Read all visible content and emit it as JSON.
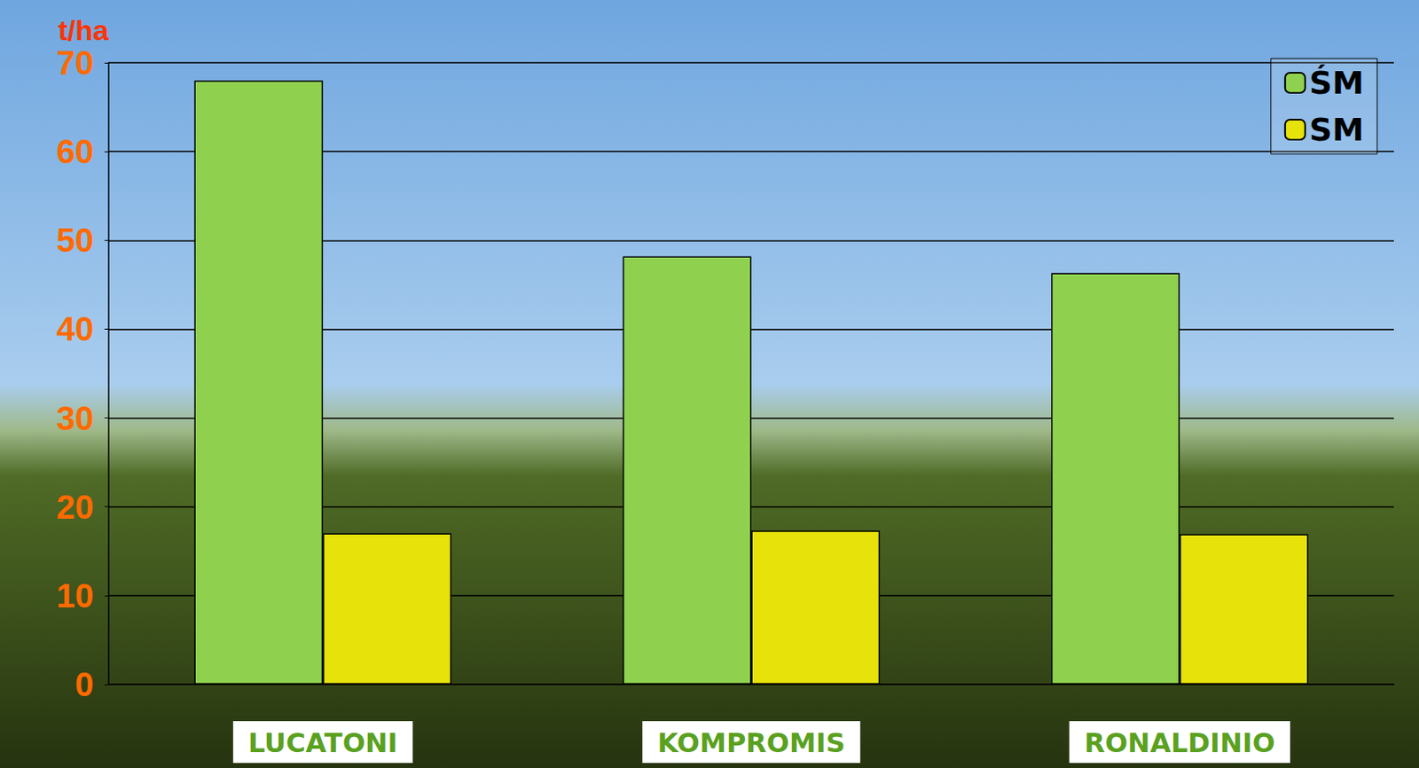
{
  "chart_data": {
    "type": "bar",
    "y_label": "t/ha",
    "categories": [
      "LUCATONI",
      "KOMPROMIS",
      "RONALDINIO"
    ],
    "series": [
      {
        "name": "ŚM",
        "color": "#8fd14f",
        "values": [
          68,
          48.2,
          46.3
        ]
      },
      {
        "name": "SM",
        "color": "#e6e20a",
        "values": [
          17,
          17.3,
          16.9
        ]
      }
    ],
    "ylim": [
      0,
      70
    ],
    "yticks": [
      0,
      10,
      20,
      30,
      40,
      50,
      60,
      70
    ],
    "grid": true,
    "legend": "upper right"
  }
}
